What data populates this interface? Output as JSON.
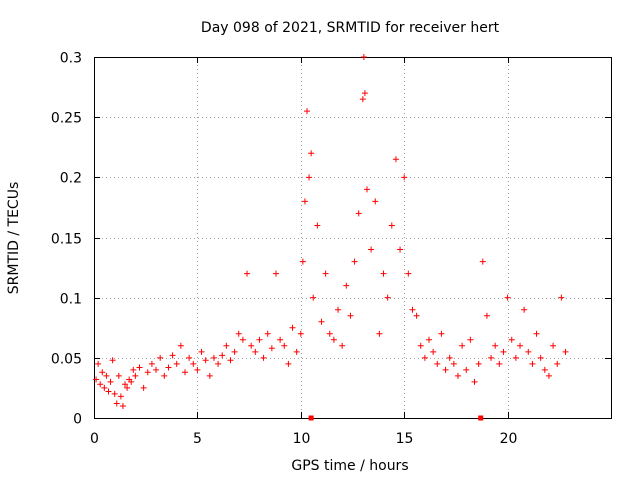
{
  "chart_data": {
    "type": "scatter",
    "title": "Day 098 of 2021, SRMTID for receiver hert",
    "xlabel": "GPS time / hours",
    "ylabel": "SRMTID / TECUs",
    "xlim": [
      0,
      25
    ],
    "ylim": [
      0,
      0.3
    ],
    "xticks": [
      0,
      5,
      10,
      15,
      20
    ],
    "xtick_labels": [
      "0",
      "5",
      "10",
      "15",
      "20"
    ],
    "yticks": [
      0,
      0.05,
      0.1,
      0.15,
      0.2,
      0.25,
      0.3
    ],
    "ytick_labels": [
      "0",
      "0.05",
      "0.1",
      "0.15",
      "0.2",
      "0.25",
      "0.3"
    ],
    "grid": true,
    "marker": "plus",
    "marker_color": "#ff0000",
    "axis_markers": [
      10.5,
      18.7
    ],
    "series": [
      {
        "name": "SRMTID",
        "x": [
          0.1,
          0.2,
          0.3,
          0.4,
          0.5,
          0.6,
          0.7,
          0.8,
          0.9,
          1.0,
          1.1,
          1.2,
          1.3,
          1.4,
          1.5,
          1.6,
          1.7,
          1.8,
          1.9,
          2.0,
          2.2,
          2.4,
          2.6,
          2.8,
          3.0,
          3.2,
          3.4,
          3.6,
          3.8,
          4.0,
          4.2,
          4.4,
          4.6,
          4.8,
          5.0,
          5.2,
          5.4,
          5.6,
          5.8,
          6.0,
          6.2,
          6.4,
          6.6,
          6.8,
          7.0,
          7.2,
          7.4,
          7.6,
          7.8,
          8.0,
          8.2,
          8.4,
          8.6,
          8.8,
          9.0,
          9.2,
          9.4,
          9.6,
          9.8,
          10.0,
          10.1,
          10.2,
          10.3,
          10.4,
          10.5,
          10.6,
          10.8,
          11.0,
          11.2,
          11.4,
          11.6,
          11.8,
          12.0,
          12.2,
          12.4,
          12.6,
          12.8,
          13.0,
          13.05,
          13.1,
          13.2,
          13.4,
          13.6,
          13.8,
          14.0,
          14.2,
          14.4,
          14.6,
          14.8,
          15.0,
          15.2,
          15.4,
          15.6,
          15.8,
          16.0,
          16.2,
          16.4,
          16.6,
          16.8,
          17.0,
          17.2,
          17.4,
          17.6,
          17.8,
          18.0,
          18.2,
          18.4,
          18.6,
          18.8,
          19.0,
          19.2,
          19.4,
          19.6,
          19.8,
          20.0,
          20.2,
          20.4,
          20.6,
          20.8,
          21.0,
          21.2,
          21.4,
          21.6,
          21.8,
          22.0,
          22.2,
          22.4,
          22.6,
          22.8
        ],
        "y": [
          0.032,
          0.045,
          0.028,
          0.038,
          0.025,
          0.035,
          0.022,
          0.03,
          0.048,
          0.02,
          0.012,
          0.035,
          0.018,
          0.01,
          0.028,
          0.025,
          0.032,
          0.03,
          0.04,
          0.035,
          0.042,
          0.025,
          0.038,
          0.045,
          0.04,
          0.05,
          0.035,
          0.042,
          0.052,
          0.045,
          0.06,
          0.038,
          0.05,
          0.045,
          0.04,
          0.055,
          0.048,
          0.035,
          0.05,
          0.045,
          0.052,
          0.06,
          0.048,
          0.055,
          0.07,
          0.065,
          0.12,
          0.06,
          0.055,
          0.065,
          0.05,
          0.07,
          0.058,
          0.12,
          0.065,
          0.06,
          0.045,
          0.075,
          0.055,
          0.07,
          0.13,
          0.18,
          0.255,
          0.2,
          0.22,
          0.1,
          0.16,
          0.08,
          0.12,
          0.07,
          0.065,
          0.09,
          0.06,
          0.11,
          0.085,
          0.13,
          0.17,
          0.265,
          0.3,
          0.27,
          0.19,
          0.14,
          0.18,
          0.07,
          0.12,
          0.1,
          0.16,
          0.215,
          0.14,
          0.2,
          0.12,
          0.09,
          0.085,
          0.06,
          0.05,
          0.065,
          0.055,
          0.045,
          0.07,
          0.04,
          0.05,
          0.045,
          0.035,
          0.06,
          0.04,
          0.065,
          0.03,
          0.045,
          0.13,
          0.085,
          0.05,
          0.06,
          0.045,
          0.055,
          0.1,
          0.065,
          0.05,
          0.06,
          0.09,
          0.055,
          0.045,
          0.07,
          0.05,
          0.04,
          0.035,
          0.06,
          0.045,
          0.1,
          0.055
        ]
      }
    ]
  }
}
